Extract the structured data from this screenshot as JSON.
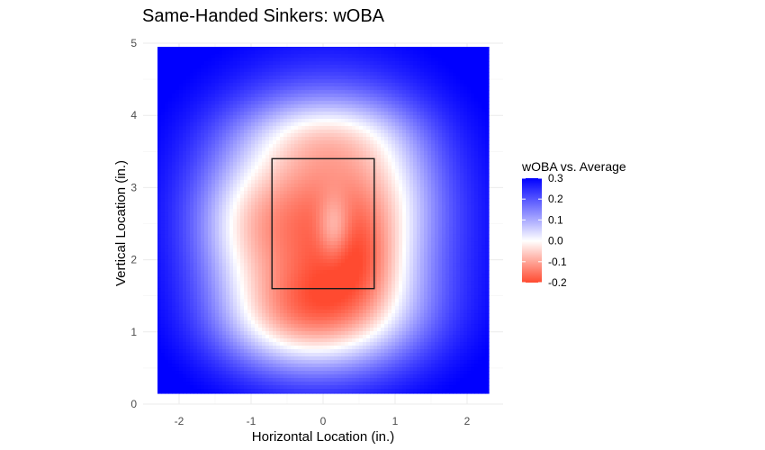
{
  "chart_data": {
    "type": "heatmap",
    "title": "Same-Handed Sinkers: wOBA",
    "xlabel": "Horizontal Location (in.)",
    "ylabel": "Vertical Location (in.)",
    "xlim": [
      -2.5,
      2.5
    ],
    "ylim": [
      0,
      5
    ],
    "x_ticks": [
      -2,
      -1,
      0,
      1,
      2
    ],
    "y_ticks": [
      0,
      1,
      2,
      3,
      4,
      5
    ],
    "x_tick_labels": [
      "-2",
      "-1",
      "0",
      "1",
      "2"
    ],
    "y_tick_labels": [
      "0",
      "1",
      "2",
      "3",
      "4",
      "5"
    ],
    "grid": true,
    "data_extent": {
      "x": [
        -2.3,
        2.3
      ],
      "y": [
        0.15,
        4.95
      ]
    },
    "strike_zone": {
      "x": [
        -0.71,
        0.71
      ],
      "y": [
        1.6,
        3.4
      ]
    },
    "legend": {
      "title": "wOBA vs. Average",
      "placement": "right",
      "min": -0.2,
      "max": 0.3,
      "ticks": [
        0.3,
        0.2,
        0.1,
        0.0,
        -0.1,
        -0.2
      ],
      "tick_labels": [
        "0.3",
        "0.2",
        "0.1",
        "0.0",
        "-0.1",
        "-0.2"
      ]
    },
    "colors": {
      "low": "#ff4a30",
      "mid": "#ffffff",
      "high": "#0000ff"
    },
    "surface": {
      "baseline": 0.32,
      "components": [
        {
          "x": 0.0,
          "y": 2.6,
          "sx": 1.05,
          "sy": 1.1,
          "amp": -0.46
        },
        {
          "x": -1.1,
          "y": 2.45,
          "sx": 0.5,
          "sy": 0.65,
          "amp": -0.1
        },
        {
          "x": 0.55,
          "y": 2.0,
          "sx": 0.4,
          "sy": 0.45,
          "amp": -0.08
        },
        {
          "x": 0.2,
          "y": 1.2,
          "sx": 0.9,
          "sy": 0.55,
          "amp": -0.22
        },
        {
          "x": -0.7,
          "y": 1.1,
          "sx": 0.7,
          "sy": 0.5,
          "amp": -0.1
        },
        {
          "x": 0.15,
          "y": 2.45,
          "sx": 0.16,
          "sy": 0.32,
          "amp": 0.11
        },
        {
          "x": 0.0,
          "y": 3.75,
          "sx": 0.8,
          "sy": 0.35,
          "amp": -0.1
        },
        {
          "x": 0.9,
          "y": 3.0,
          "sx": 0.5,
          "sy": 0.7,
          "amp": -0.06
        }
      ]
    }
  }
}
